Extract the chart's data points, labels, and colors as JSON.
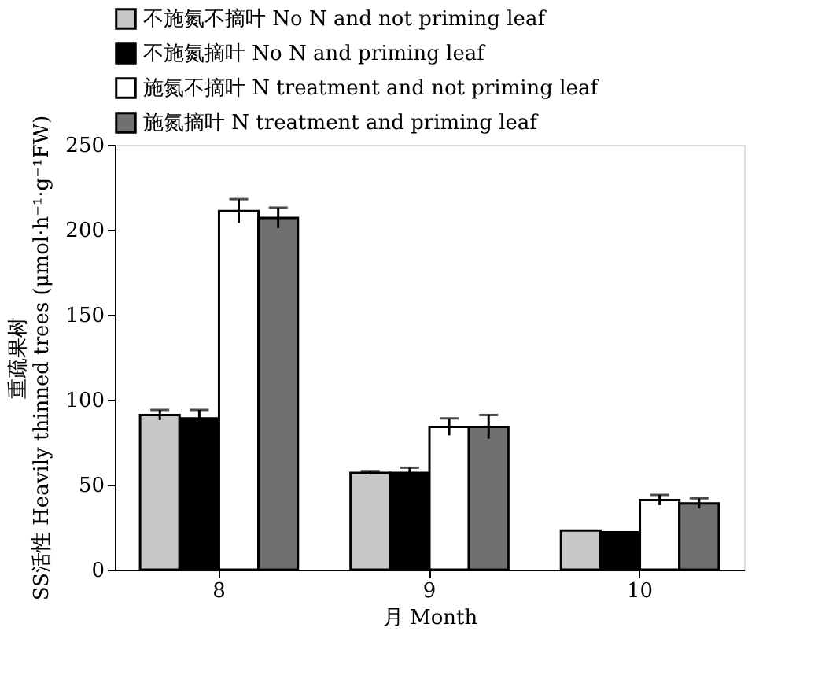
{
  "chart_data": {
    "type": "bar",
    "xlabel": "月 Month",
    "ylabel": "重疏果树 SS活性 Heavily thinned trees (μmol·h⁻¹·g⁻¹FW)",
    "categories": [
      "8",
      "9",
      "10"
    ],
    "series": [
      {
        "name": "不施氮不摘叶 No N and not priming leaf",
        "color": "#c8c8c8",
        "values": [
          91,
          57,
          23
        ],
        "errors": [
          3,
          1,
          null
        ]
      },
      {
        "name": "不施氮摘叶 No N and priming leaf",
        "color": "#000000",
        "values": [
          89,
          57,
          22
        ],
        "errors": [
          5,
          3,
          null
        ]
      },
      {
        "name": "施氮不摘叶 N treatment and not priming leaf",
        "color": "#ffffff",
        "values": [
          211,
          84,
          41
        ],
        "errors": [
          7,
          5,
          3
        ]
      },
      {
        "name": "施氮摘叶 N treatment and priming leaf",
        "color": "#707070",
        "values": [
          207,
          84,
          39
        ],
        "errors": [
          6,
          7,
          3
        ]
      }
    ],
    "ylim": [
      0,
      250
    ],
    "yticks": [
      0,
      50,
      100,
      150,
      200,
      250
    ],
    "grid": false,
    "legend": "top"
  }
}
